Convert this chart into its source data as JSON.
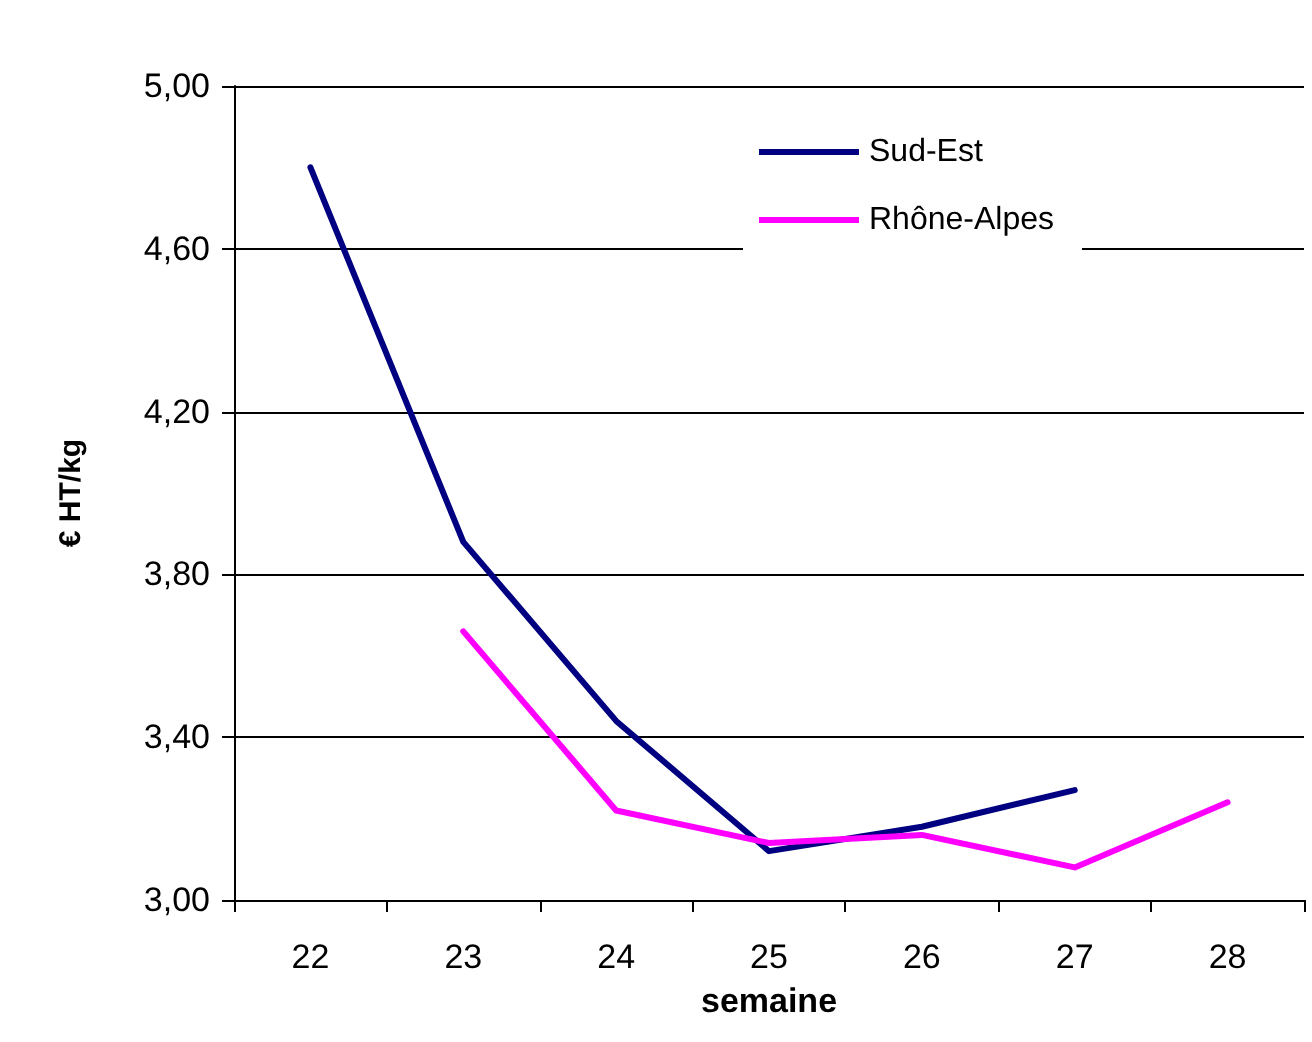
{
  "chart_data": {
    "type": "line",
    "xlabel": "semaine",
    "ylabel": "€ HT/kg",
    "categories": [
      "22",
      "23",
      "24",
      "25",
      "26",
      "27",
      "28"
    ],
    "series": [
      {
        "name": "Sud-Est",
        "color": "#000080",
        "values": [
          4.8,
          3.88,
          3.44,
          3.12,
          3.18,
          3.27,
          null
        ]
      },
      {
        "name": "Rhône-Alpes",
        "color": "#ff00ff",
        "values": [
          null,
          3.66,
          3.22,
          3.14,
          3.16,
          3.08,
          3.24
        ]
      }
    ],
    "ylim": [
      3,
      5
    ],
    "yticks": [
      {
        "value": 3,
        "label": "3,00"
      },
      {
        "value": 3.4,
        "label": "3,40"
      },
      {
        "value": 3.8,
        "label": "3,80"
      },
      {
        "value": 4.2,
        "label": "4,20"
      },
      {
        "value": 4.6,
        "label": "4,60"
      },
      {
        "value": 5,
        "label": "5,00"
      }
    ],
    "grid": "y",
    "legend": "top right",
    "marker": "none",
    "line_style": "solid"
  }
}
